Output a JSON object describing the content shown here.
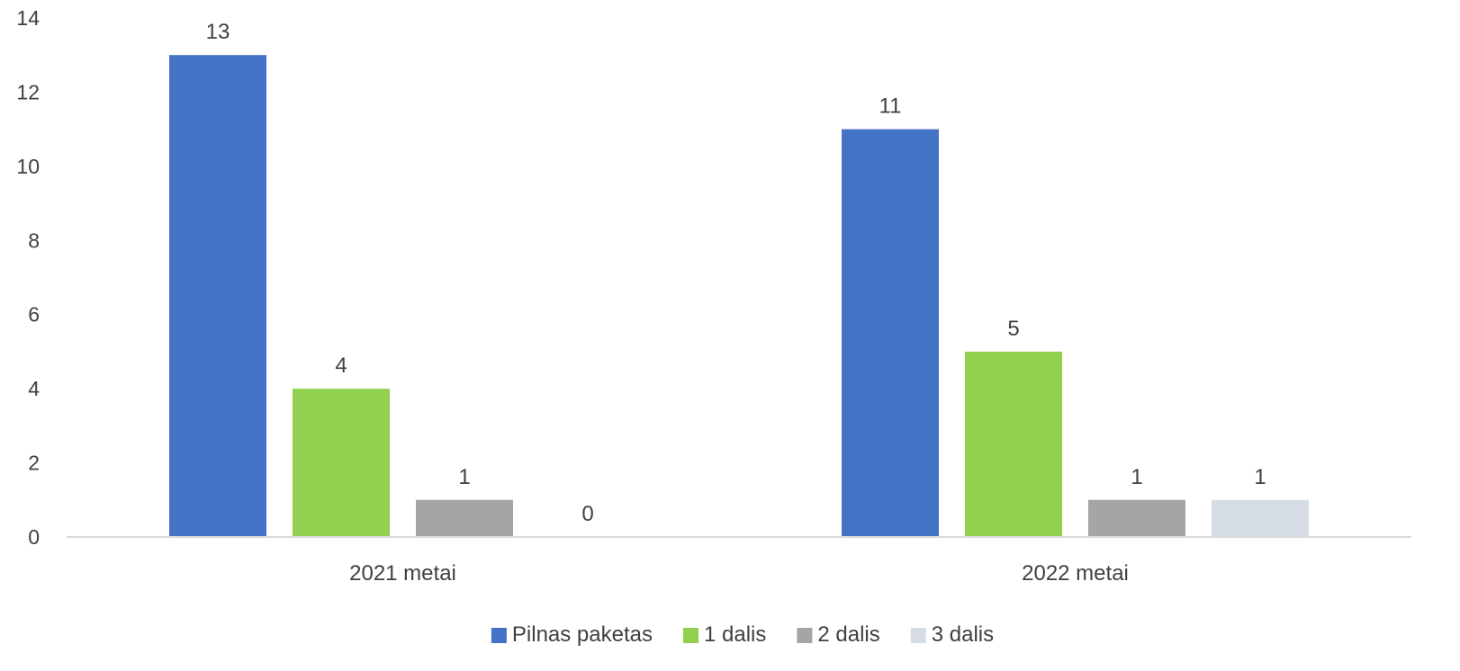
{
  "chart_data": {
    "type": "bar",
    "title": "",
    "xlabel": "",
    "ylabel": "",
    "categories": [
      "2021 metai",
      "2022 metai"
    ],
    "series": [
      {
        "name": "Pilnas paketas",
        "color": "#4472C4",
        "values": [
          13,
          11
        ]
      },
      {
        "name": "1 dalis",
        "color": "#92D050",
        "values": [
          4,
          5
        ]
      },
      {
        "name": "2 dalis",
        "color": "#A5A5A5",
        "values": [
          1,
          1
        ]
      },
      {
        "name": "3 dalis",
        "color": "#D6DCE4",
        "values": [
          0,
          1
        ]
      }
    ],
    "ylim": [
      0,
      14
    ],
    "yticks": [
      0,
      2,
      4,
      6,
      8,
      10,
      12,
      14
    ],
    "grid": false,
    "legend": "bottom",
    "data_labels": true
  }
}
